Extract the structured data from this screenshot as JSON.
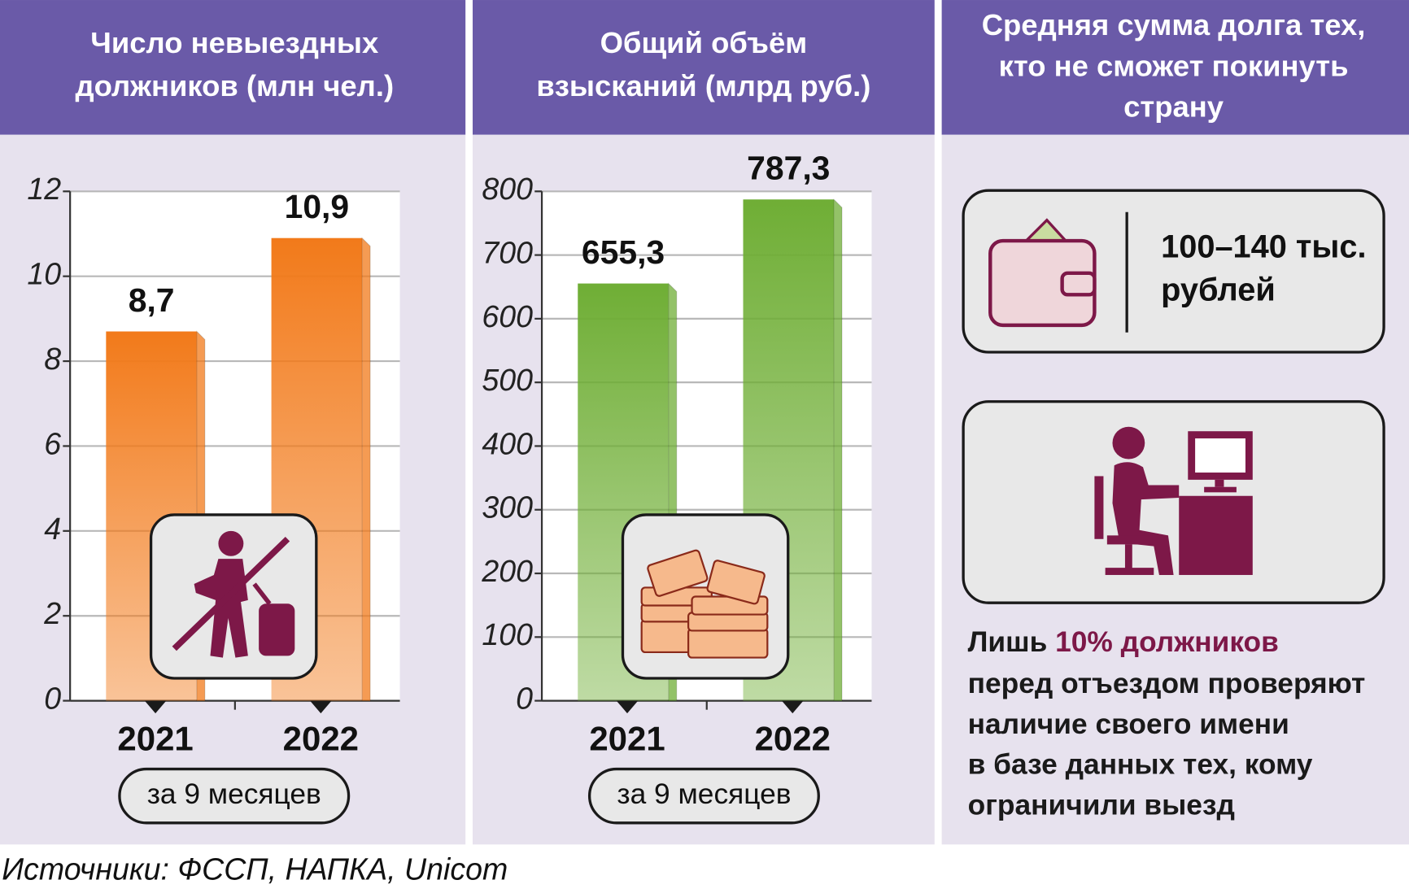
{
  "chart_data": [
    {
      "type": "bar",
      "title": [
        "Число невыездных",
        "должников (млн чел.)"
      ],
      "categories": [
        "2021",
        "2022"
      ],
      "values": [
        8.7,
        10.9
      ],
      "value_labels": [
        "8,7",
        "10,9"
      ],
      "color": "#f27a1a",
      "ylim": [
        0,
        12
      ],
      "yticks": [
        0,
        2,
        4,
        6,
        8,
        10,
        12
      ],
      "grid": true,
      "note": "за 9 месяцев"
    },
    {
      "type": "bar",
      "title": [
        "Общий объём",
        "взысканий (млрд руб.)"
      ],
      "categories": [
        "2021",
        "2022"
      ],
      "values": [
        655.3,
        787.3
      ],
      "value_labels": [
        "655,3",
        "787,3"
      ],
      "color": "#6fae35",
      "ylim": [
        0,
        800
      ],
      "yticks": [
        0,
        100,
        200,
        300,
        400,
        500,
        600,
        700,
        800
      ],
      "grid": true,
      "note": "за 9 месяцев"
    }
  ],
  "panel": {
    "title": [
      "Средняя сумма долга тех,",
      "кто не сможет покинуть",
      "страну"
    ],
    "amount": [
      "100–140 тыс.",
      "рублей"
    ],
    "note": {
      "prefix": "Лишь ",
      "highlight": "10% должников",
      "lines": [
        "перед отъездом проверяют",
        "наличие своего имени",
        "в базе данных тех, кому",
        "ограничили выезд"
      ]
    }
  },
  "source": "Источники: ФССП, НАПКА, Unicom"
}
